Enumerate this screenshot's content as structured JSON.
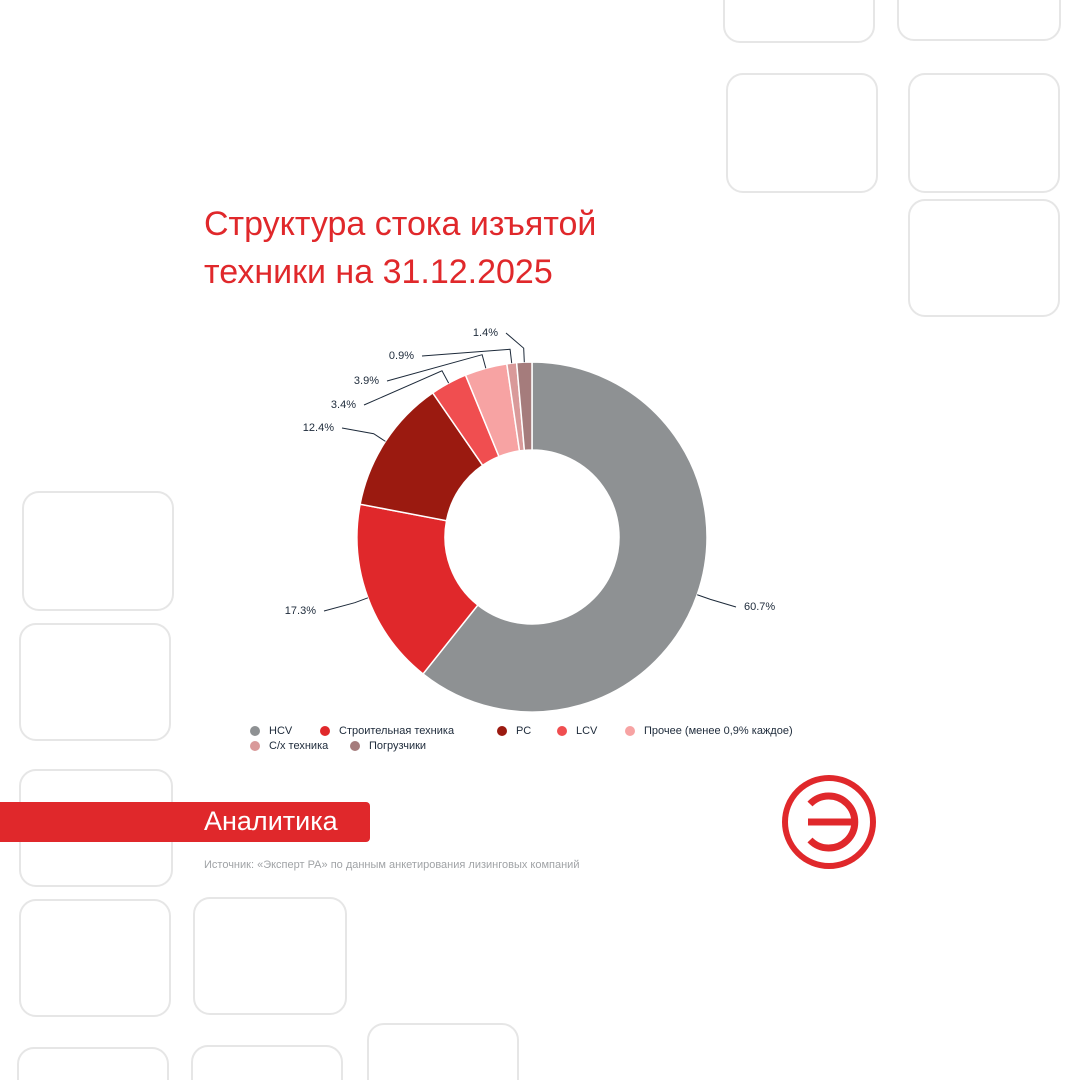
{
  "chart_data": {
    "type": "pie",
    "title": "Структура стока изъятой техники на 31.12.2025",
    "categories": [
      "HCV",
      "Строительная техника",
      "РС",
      "LCV",
      "Прочее (менее 0,9% каждое)",
      "С/х техника",
      "Погрузчики"
    ],
    "values": [
      60.7,
      17.3,
      12.4,
      3.4,
      3.9,
      0.9,
      1.4
    ],
    "value_labels": [
      "60.7%",
      "17.3%",
      "12.4%",
      "3.4%",
      "3.9%",
      "0.9%",
      "1.4%"
    ],
    "colors": [
      "#8e9193",
      "#e0282b",
      "#9b1a10",
      "#f04e50",
      "#f7a3a3",
      "#d99a9a",
      "#a57c7c"
    ],
    "legend": "bottom"
  },
  "badge": "Аналитика",
  "source": "Источник: «Эксперт РА» по данным анкетирования лизинговых компаний"
}
